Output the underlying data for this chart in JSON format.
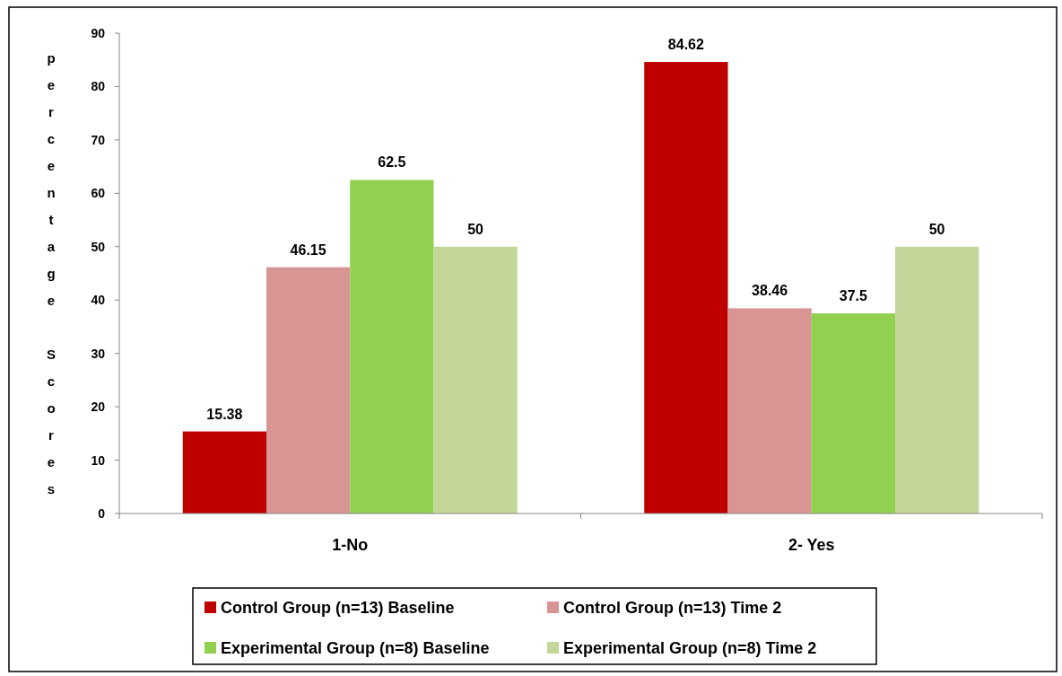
{
  "chart_data": {
    "type": "bar",
    "ylabel": "percentage Scores",
    "categories": [
      "1-No",
      "2- Yes"
    ],
    "series": [
      {
        "name": "Control Group (n=13) Baseline",
        "color": "#c00000",
        "values": [
          15.38,
          84.62
        ]
      },
      {
        "name": "Control Group (n=13) Time 2",
        "color": "#d99594",
        "values": [
          46.15,
          38.46
        ]
      },
      {
        "name": "Experimental Group (n=8) Baseline",
        "color": "#92d050",
        "values": [
          62.5,
          37.5
        ]
      },
      {
        "name": "Experimental Group (n=8) Time 2",
        "color": "#c4d79b",
        "values": [
          50,
          50
        ]
      }
    ],
    "ylim": [
      0,
      90
    ],
    "yticks": [
      0,
      10,
      20,
      30,
      40,
      50,
      60,
      70,
      80,
      90
    ],
    "data_labels": true,
    "legend": "bottom",
    "grid": false
  }
}
